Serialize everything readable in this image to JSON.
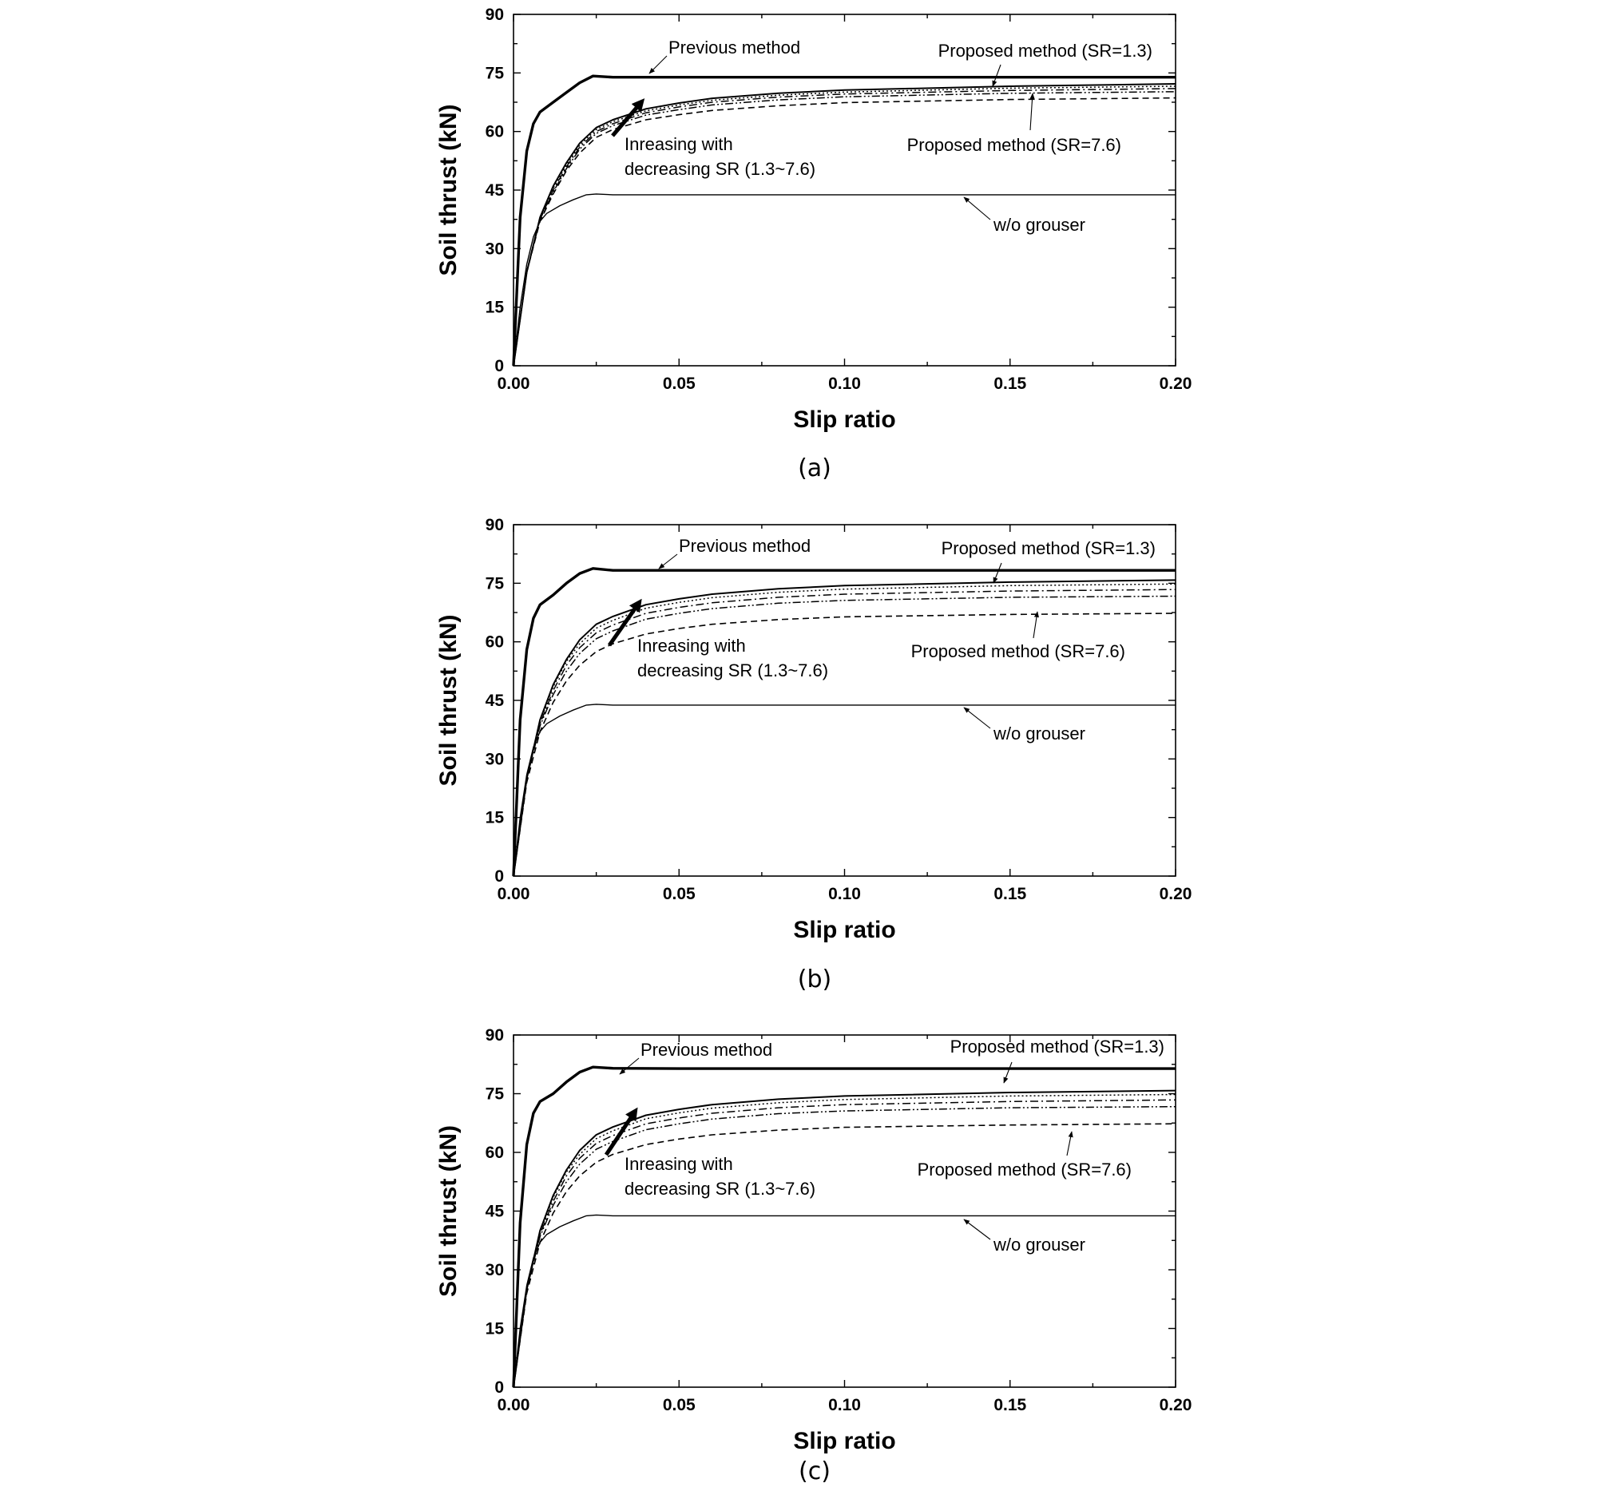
{
  "chart_data": [
    {
      "type": "line",
      "panel_label": "(a)",
      "xlabel": "Slip ratio",
      "ylabel": "Soil thrust (kN)",
      "xlim": [
        0,
        0.2
      ],
      "ylim": [
        0,
        90
      ],
      "xticks": [
        "0.00",
        "0.05",
        "0.10",
        "0.15",
        "0.20"
      ],
      "yticks": [
        "0",
        "15",
        "30",
        "45",
        "60",
        "75",
        "90"
      ],
      "grid": false,
      "series": [
        {
          "style": "solid-thick",
          "x": [
            0,
            0.002,
            0.004,
            0.006,
            0.008,
            0.012,
            0.016,
            0.02,
            0.024,
            0.03,
            0.05,
            0.1,
            0.15,
            0.2
          ],
          "y": [
            0,
            38,
            55,
            62,
            65,
            67.5,
            70,
            72.5,
            74.2,
            73.9,
            73.9,
            73.9,
            73.9,
            73.9
          ]
        },
        {
          "style": "solid",
          "x": [
            0,
            0.004,
            0.008,
            0.012,
            0.016,
            0.02,
            0.025,
            0.03,
            0.04,
            0.05,
            0.06,
            0.08,
            0.1,
            0.15,
            0.2
          ],
          "y": [
            0,
            24,
            38,
            46,
            52,
            57,
            61,
            63,
            65.8,
            67.3,
            68.5,
            69.8,
            70.6,
            71.6,
            72.2
          ]
        },
        {
          "style": "dotted",
          "x": [
            0,
            0.004,
            0.008,
            0.012,
            0.016,
            0.02,
            0.025,
            0.03,
            0.04,
            0.05,
            0.06,
            0.08,
            0.1,
            0.15,
            0.2
          ],
          "y": [
            0,
            24,
            38,
            45.5,
            51.5,
            56.5,
            60.5,
            62.5,
            65.3,
            66.8,
            68,
            69.3,
            70.1,
            71.1,
            71.6
          ]
        },
        {
          "style": "dash-dot",
          "x": [
            0,
            0.004,
            0.008,
            0.012,
            0.016,
            0.02,
            0.025,
            0.03,
            0.04,
            0.05,
            0.06,
            0.08,
            0.1,
            0.15,
            0.2
          ],
          "y": [
            0,
            24,
            37.5,
            45,
            51,
            56,
            60,
            62,
            64.8,
            66.3,
            67.5,
            68.8,
            69.6,
            70.5,
            71
          ]
        },
        {
          "style": "dash-dot-dot",
          "x": [
            0,
            0.004,
            0.008,
            0.012,
            0.016,
            0.02,
            0.025,
            0.03,
            0.04,
            0.05,
            0.06,
            0.08,
            0.1,
            0.15,
            0.2
          ],
          "y": [
            0,
            24,
            37.5,
            44.5,
            50.5,
            55.5,
            59.5,
            61.5,
            64.2,
            65.6,
            66.8,
            68.1,
            68.9,
            69.8,
            70.2
          ]
        },
        {
          "style": "dashed",
          "x": [
            0,
            0.004,
            0.008,
            0.012,
            0.016,
            0.02,
            0.025,
            0.03,
            0.04,
            0.05,
            0.06,
            0.08,
            0.1,
            0.15,
            0.2
          ],
          "y": [
            0,
            24,
            37,
            44,
            50,
            54.5,
            58.5,
            60.5,
            63,
            64.3,
            65.4,
            66.6,
            67.4,
            68.2,
            68.6
          ]
        },
        {
          "style": "solid-thin",
          "x": [
            0,
            0.002,
            0.004,
            0.006,
            0.008,
            0.01,
            0.014,
            0.018,
            0.022,
            0.025,
            0.03,
            0.05,
            0.1,
            0.15,
            0.2
          ],
          "y": [
            0,
            15,
            26,
            33,
            37,
            39,
            41,
            42.5,
            43.8,
            44,
            43.8,
            43.8,
            43.8,
            43.8,
            43.8
          ]
        }
      ],
      "annotations": [
        "Previous method",
        "Proposed method (SR=1.3)",
        "Inreasing with",
        "decreasing SR (1.3~7.6)",
        "Proposed method (SR=7.6)",
        "w/o grouser"
      ]
    },
    {
      "type": "line",
      "panel_label": "(b)",
      "xlabel": "Slip ratio",
      "ylabel": "Soil thrust (kN)",
      "xlim": [
        0,
        0.2
      ],
      "ylim": [
        0,
        90
      ],
      "xticks": [
        "0.00",
        "0.05",
        "0.10",
        "0.15",
        "0.20"
      ],
      "yticks": [
        "0",
        "15",
        "30",
        "45",
        "60",
        "75",
        "90"
      ],
      "grid": false,
      "series": [
        {
          "style": "solid-thick",
          "x": [
            0,
            0.002,
            0.004,
            0.006,
            0.008,
            0.012,
            0.016,
            0.02,
            0.024,
            0.03,
            0.05,
            0.1,
            0.15,
            0.2
          ],
          "y": [
            0,
            40,
            58,
            66,
            69.5,
            72,
            75,
            77.5,
            78.8,
            78.3,
            78.3,
            78.3,
            78.3,
            78.3
          ]
        },
        {
          "style": "solid",
          "x": [
            0,
            0.004,
            0.008,
            0.012,
            0.016,
            0.02,
            0.025,
            0.03,
            0.04,
            0.05,
            0.06,
            0.08,
            0.1,
            0.15,
            0.2
          ],
          "y": [
            0,
            25,
            40,
            49,
            55.5,
            60.5,
            64.5,
            66.5,
            69.5,
            71,
            72.2,
            73.6,
            74.4,
            75.3,
            75.8
          ]
        },
        {
          "style": "dotted",
          "x": [
            0,
            0.004,
            0.008,
            0.012,
            0.016,
            0.02,
            0.025,
            0.03,
            0.04,
            0.05,
            0.06,
            0.08,
            0.1,
            0.15,
            0.2
          ],
          "y": [
            0,
            25,
            39.5,
            48.5,
            55,
            59.5,
            63.5,
            65.5,
            68.6,
            70.1,
            71.3,
            72.7,
            73.5,
            74.4,
            74.8
          ]
        },
        {
          "style": "dash-dot",
          "x": [
            0,
            0.004,
            0.008,
            0.012,
            0.016,
            0.02,
            0.025,
            0.03,
            0.04,
            0.05,
            0.06,
            0.08,
            0.1,
            0.15,
            0.2
          ],
          "y": [
            0,
            25,
            39,
            47.5,
            54,
            58.5,
            62.3,
            64.3,
            67.3,
            68.8,
            70,
            71.4,
            72.2,
            73,
            73.4
          ]
        },
        {
          "style": "dash-dot-dot",
          "x": [
            0,
            0.004,
            0.008,
            0.012,
            0.016,
            0.02,
            0.025,
            0.03,
            0.04,
            0.05,
            0.06,
            0.08,
            0.1,
            0.15,
            0.2
          ],
          "y": [
            0,
            25,
            38.5,
            46.5,
            52.5,
            57,
            60.8,
            62.8,
            65.8,
            67.3,
            68.5,
            69.9,
            70.6,
            71.4,
            71.7
          ]
        },
        {
          "style": "dashed",
          "x": [
            0,
            0.004,
            0.008,
            0.012,
            0.016,
            0.02,
            0.025,
            0.03,
            0.04,
            0.05,
            0.06,
            0.08,
            0.1,
            0.15,
            0.2
          ],
          "y": [
            0,
            24,
            37,
            44.5,
            50,
            54,
            57.5,
            59.5,
            62,
            63.4,
            64.5,
            65.7,
            66.4,
            67,
            67.3
          ]
        },
        {
          "style": "solid-thin",
          "x": [
            0,
            0.002,
            0.004,
            0.006,
            0.008,
            0.01,
            0.014,
            0.018,
            0.022,
            0.025,
            0.03,
            0.05,
            0.1,
            0.15,
            0.2
          ],
          "y": [
            0,
            15,
            26,
            33,
            37,
            39,
            41,
            42.5,
            43.8,
            44,
            43.8,
            43.8,
            43.8,
            43.8,
            43.8
          ]
        }
      ],
      "annotations": [
        "Previous method",
        "Proposed method (SR=1.3)",
        "Inreasing with",
        "decreasing SR (1.3~7.6)",
        "Proposed method (SR=7.6)",
        "w/o grouser"
      ]
    },
    {
      "type": "line",
      "panel_label": "(c)",
      "xlabel": "Slip ratio",
      "ylabel": "Soil thrust (kN)",
      "xlim": [
        0,
        0.2
      ],
      "ylim": [
        0,
        90
      ],
      "xticks": [
        "0.00",
        "0.05",
        "0.10",
        "0.15",
        "0.20"
      ],
      "yticks": [
        "0",
        "15",
        "30",
        "45",
        "60",
        "75",
        "90"
      ],
      "grid": false,
      "series": [
        {
          "style": "solid-thick",
          "x": [
            0,
            0.002,
            0.004,
            0.006,
            0.008,
            0.012,
            0.016,
            0.02,
            0.024,
            0.03,
            0.05,
            0.1,
            0.15,
            0.2
          ],
          "y": [
            0,
            42,
            62,
            70,
            73,
            75,
            78,
            80.5,
            81.8,
            81.5,
            81.4,
            81.4,
            81.4,
            81.4
          ]
        },
        {
          "style": "solid",
          "x": [
            0,
            0.004,
            0.008,
            0.012,
            0.016,
            0.02,
            0.025,
            0.03,
            0.04,
            0.05,
            0.06,
            0.08,
            0.1,
            0.15,
            0.2
          ],
          "y": [
            0,
            25,
            40,
            49,
            55.5,
            60.5,
            64.5,
            66.5,
            69.5,
            71,
            72.2,
            73.6,
            74.4,
            75.3,
            75.8
          ]
        },
        {
          "style": "dotted",
          "x": [
            0,
            0.004,
            0.008,
            0.012,
            0.016,
            0.02,
            0.025,
            0.03,
            0.04,
            0.05,
            0.06,
            0.08,
            0.1,
            0.15,
            0.2
          ],
          "y": [
            0,
            25,
            39.5,
            48.5,
            55,
            59.5,
            63.5,
            65.5,
            68.6,
            70.1,
            71.3,
            72.7,
            73.5,
            74.4,
            74.8
          ]
        },
        {
          "style": "dash-dot",
          "x": [
            0,
            0.004,
            0.008,
            0.012,
            0.016,
            0.02,
            0.025,
            0.03,
            0.04,
            0.05,
            0.06,
            0.08,
            0.1,
            0.15,
            0.2
          ],
          "y": [
            0,
            25,
            39,
            47.5,
            54,
            58.5,
            62.3,
            64.3,
            67.3,
            68.8,
            70,
            71.4,
            72.2,
            73,
            73.4
          ]
        },
        {
          "style": "dash-dot-dot",
          "x": [
            0,
            0.004,
            0.008,
            0.012,
            0.016,
            0.02,
            0.025,
            0.03,
            0.04,
            0.05,
            0.06,
            0.08,
            0.1,
            0.15,
            0.2
          ],
          "y": [
            0,
            25,
            38.5,
            46.5,
            52.5,
            57,
            60.8,
            62.8,
            65.8,
            67.3,
            68.5,
            69.9,
            70.6,
            71.4,
            71.7
          ]
        },
        {
          "style": "dashed",
          "x": [
            0,
            0.004,
            0.008,
            0.012,
            0.016,
            0.02,
            0.025,
            0.03,
            0.04,
            0.05,
            0.06,
            0.08,
            0.1,
            0.15,
            0.2
          ],
          "y": [
            0,
            24,
            37,
            44.5,
            50,
            54,
            57.5,
            59.5,
            62,
            63.4,
            64.5,
            65.7,
            66.4,
            67,
            67.3
          ]
        },
        {
          "style": "solid-thin",
          "x": [
            0,
            0.002,
            0.004,
            0.006,
            0.008,
            0.01,
            0.014,
            0.018,
            0.022,
            0.025,
            0.03,
            0.05,
            0.1,
            0.15,
            0.2
          ],
          "y": [
            0,
            15,
            26,
            33,
            37,
            39,
            41,
            42.5,
            43.8,
            44,
            43.8,
            43.8,
            43.8,
            43.8,
            43.8
          ]
        }
      ],
      "annotations": [
        "Previous method",
        "Proposed method (SR=1.3)",
        "Inreasing with",
        "decreasing SR (1.3~7.6)",
        "Proposed method (SR=7.6)",
        "w/o grouser"
      ]
    }
  ]
}
